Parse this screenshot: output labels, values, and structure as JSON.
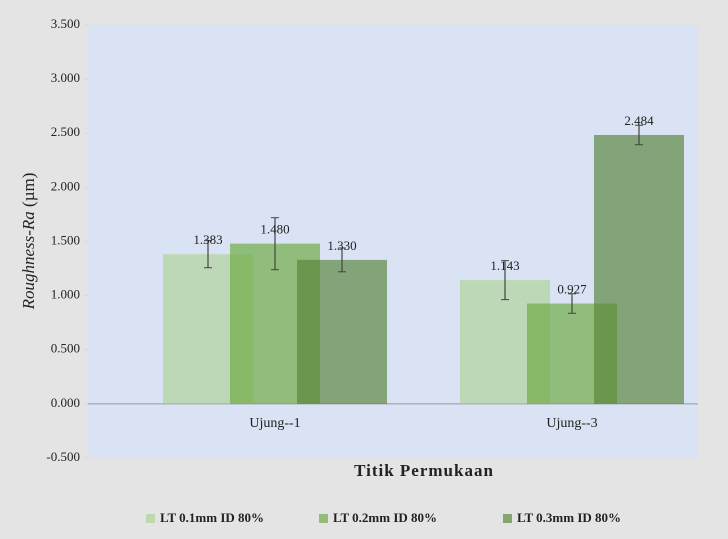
{
  "chart_data": {
    "type": "bar",
    "y_label": [
      "Roughness-Ra",
      "(µm)"
    ],
    "x_label": "Titik Permukaan",
    "categories": [
      "Ujung--1",
      "Ujung--3"
    ],
    "series": [
      {
        "name": "LT 0.1mm ID 80%",
        "color": "rgba(169,208,142,0.6)",
        "values": [
          1.383,
          1.143
        ],
        "value_labels": [
          "1.383",
          "1.143"
        ],
        "errors": [
          0.125,
          0.18
        ]
      },
      {
        "name": "LT 0.2mm ID 80%",
        "color": "rgba(112,173,71,0.7)",
        "values": [
          1.48,
          0.927
        ],
        "value_labels": [
          "1.480",
          "0.927"
        ],
        "errors": [
          0.24,
          0.09
        ]
      },
      {
        "name": "LT 0.3mm ID 80%",
        "color": "rgba(84,130,53,0.65)",
        "values": [
          1.33,
          2.484
        ],
        "value_labels": [
          "1.330",
          "2.484"
        ],
        "errors": [
          0.11,
          0.09
        ]
      }
    ],
    "ylim": [
      -0.5,
      3.5
    ],
    "yticks": [
      {
        "value": -0.5,
        "label": "-0.500"
      },
      {
        "value": 0,
        "label": "0.000"
      },
      {
        "value": 0.5,
        "label": "0.500"
      },
      {
        "value": 1,
        "label": "1.000"
      },
      {
        "value": 1.5,
        "label": "1.500"
      },
      {
        "value": 2,
        "label": "2.000"
      },
      {
        "value": 2.5,
        "label": "2.500"
      },
      {
        "value": 3,
        "label": "3.000"
      },
      {
        "value": 3.5,
        "label": "3.500"
      }
    ],
    "legend": "bottom"
  }
}
